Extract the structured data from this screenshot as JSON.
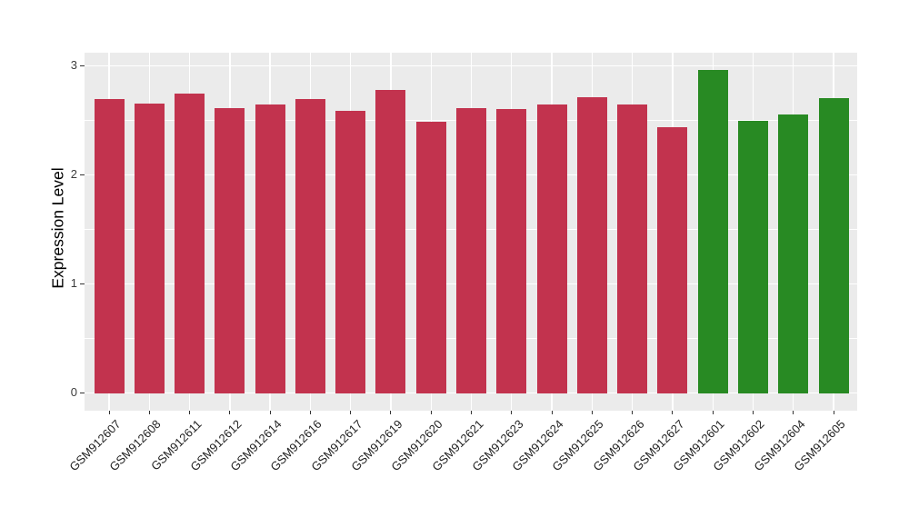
{
  "chart_data": {
    "type": "bar",
    "title": "",
    "xlabel": "",
    "ylabel": "Expression Level",
    "ylim": [
      0,
      3.12
    ],
    "yticks": [
      0,
      1,
      2,
      3
    ],
    "yticks_minor": [
      0.5,
      1.5,
      2.5
    ],
    "grid": true,
    "legend": "none",
    "plot_background": "#EBEBEB",
    "grid_color": "#FFFFFF",
    "tick_color": "#333333",
    "group_colors": {
      "red": "#C2334E",
      "green": "#288A23"
    },
    "samples": [
      {
        "id": "GSM912607",
        "value": 2.7,
        "group": "red"
      },
      {
        "id": "GSM912608",
        "value": 2.66,
        "group": "red"
      },
      {
        "id": "GSM912611",
        "value": 2.75,
        "group": "red"
      },
      {
        "id": "GSM912612",
        "value": 2.62,
        "group": "red"
      },
      {
        "id": "GSM912614",
        "value": 2.65,
        "group": "red"
      },
      {
        "id": "GSM912616",
        "value": 2.7,
        "group": "red"
      },
      {
        "id": "GSM912617",
        "value": 2.59,
        "group": "red"
      },
      {
        "id": "GSM912619",
        "value": 2.78,
        "group": "red"
      },
      {
        "id": "GSM912620",
        "value": 2.49,
        "group": "red"
      },
      {
        "id": "GSM912621",
        "value": 2.62,
        "group": "red"
      },
      {
        "id": "GSM912623",
        "value": 2.61,
        "group": "red"
      },
      {
        "id": "GSM912624",
        "value": 2.65,
        "group": "red"
      },
      {
        "id": "GSM912625",
        "value": 2.72,
        "group": "red"
      },
      {
        "id": "GSM912626",
        "value": 2.65,
        "group": "red"
      },
      {
        "id": "GSM912627",
        "value": 2.44,
        "group": "red"
      },
      {
        "id": "GSM912601",
        "value": 2.97,
        "group": "green"
      },
      {
        "id": "GSM912602",
        "value": 2.5,
        "group": "green"
      },
      {
        "id": "GSM912604",
        "value": 2.56,
        "group": "green"
      },
      {
        "id": "GSM912605",
        "value": 2.71,
        "group": "green"
      }
    ]
  }
}
